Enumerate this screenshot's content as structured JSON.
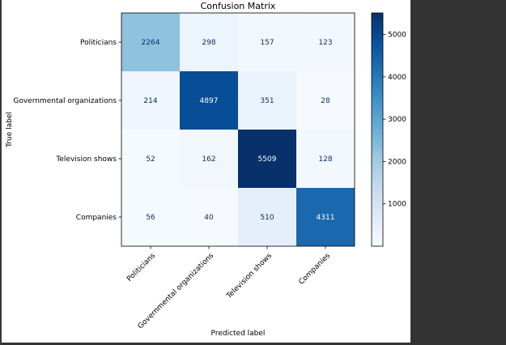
{
  "chart_data": {
    "type": "heatmap",
    "title": "Confusion Matrix",
    "xlabel": "Predicted label",
    "ylabel": "True label",
    "row_labels": [
      "Politicians",
      "Governmental organizations",
      "Television shows",
      "Companies"
    ],
    "col_labels": [
      "Politicians",
      "Governmental organizations",
      "Television shows",
      "Companies"
    ],
    "matrix": [
      [
        2264,
        298,
        157,
        123
      ],
      [
        214,
        4897,
        351,
        28
      ],
      [
        52,
        162,
        5509,
        128
      ],
      [
        56,
        40,
        510,
        4311
      ]
    ],
    "colormap": "Blues",
    "vmin": 0,
    "vmax": 5509,
    "colorbar_ticks": [
      1000,
      2000,
      3000,
      4000,
      5000
    ],
    "grid": false
  }
}
